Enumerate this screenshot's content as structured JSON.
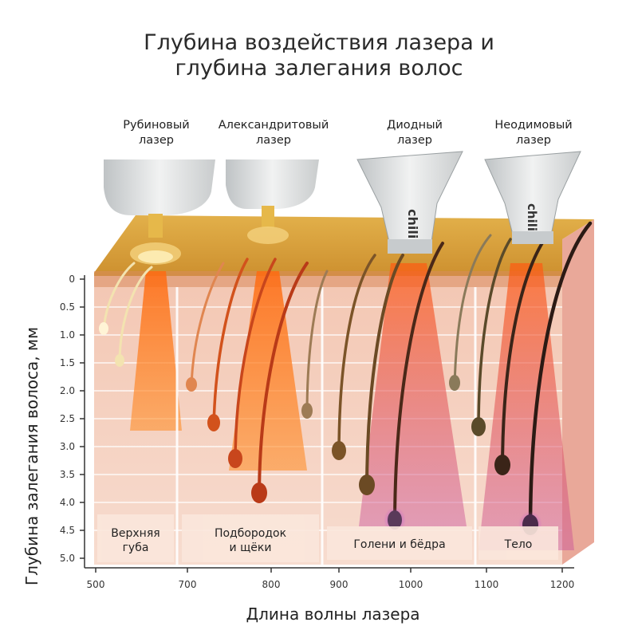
{
  "title": {
    "line1": "Глубина воздействия лазера и",
    "line2": "глубина залегания волос"
  },
  "lasers": [
    {
      "line1": "Рубиновый",
      "line2": "лазер"
    },
    {
      "line1": "Александритовый",
      "line2": "лазер"
    },
    {
      "line1": "Диодный",
      "line2": "лазер"
    },
    {
      "line1": "Неодимовый",
      "line2": "лазер"
    }
  ],
  "device_brand": "chili",
  "y_axis": {
    "label": "Глубина залегания волоса, мм",
    "ticks": [
      "0",
      "0.5",
      "1.0",
      "1.5",
      "2.0",
      "2.5",
      "3.0",
      "3.5",
      "4.0",
      "4.5",
      "5.0"
    ]
  },
  "x_axis": {
    "label": "Длина волны лазера",
    "ticks": [
      "500",
      "700",
      "800",
      "900",
      "1000",
      "1100",
      "1200"
    ]
  },
  "zones": [
    {
      "line1": "Верхняя",
      "line2": "губа"
    },
    {
      "line1": "Подбородок",
      "line2": "и щёки"
    },
    {
      "line1": "Голени и бёдра",
      "line2": ""
    },
    {
      "line1": "Тело",
      "line2": ""
    }
  ],
  "colors": {
    "skin_top": "#d8a23c",
    "skin_body": "#f6d6c6",
    "beam": "#ff7a1a",
    "hair_light": "#f3e3b0",
    "hair_red": "#d2521c",
    "hair_brown": "#6b4a24",
    "hair_dark": "#2b1a14"
  }
}
